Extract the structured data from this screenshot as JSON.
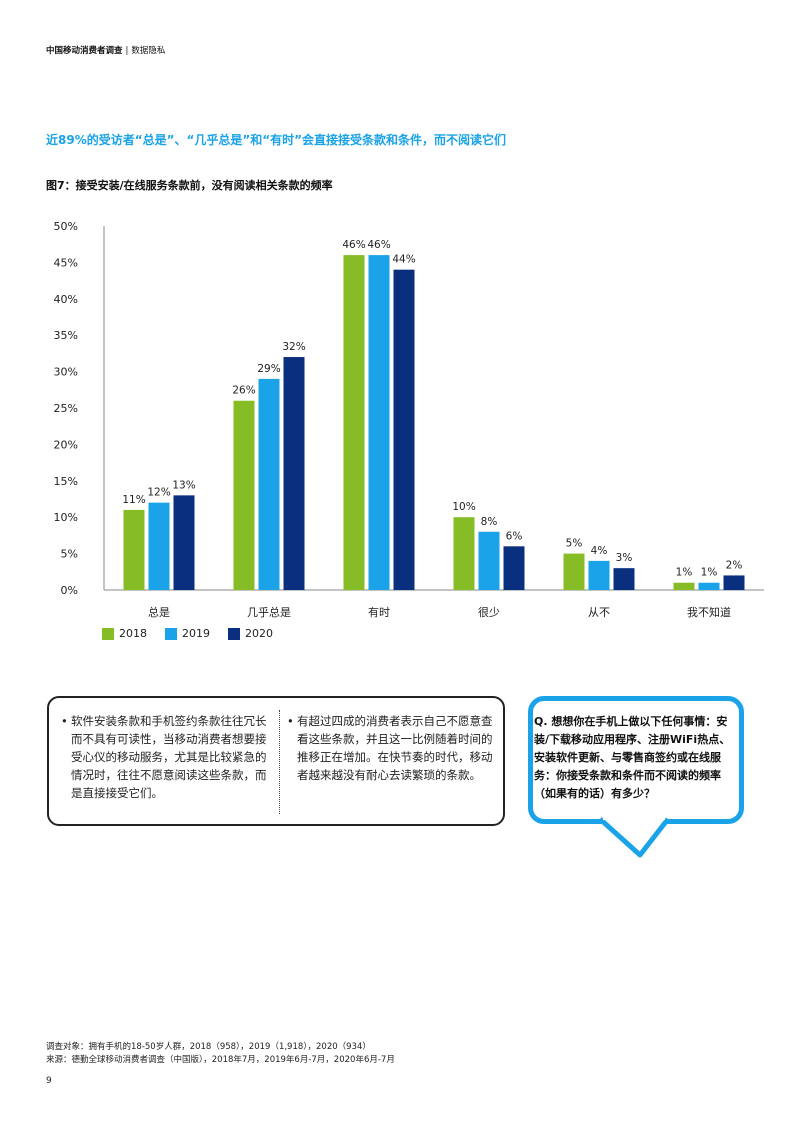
{
  "header": {
    "title": "中国移动消费者调查",
    "section": "数据隐私"
  },
  "headline": "近89%的受访者“总是”、“几乎总是”和“有时”会直接接受条款和条件，而不阅读它们",
  "figure_title": "图7：接受安装/在线服务条款前，没有阅读相关条款的频率",
  "chart_data": {
    "type": "bar",
    "categories": [
      "总是",
      "几乎总是",
      "有时",
      "很少",
      "从不",
      "我不知道"
    ],
    "series": [
      {
        "name": "2018",
        "color": "#86bc25",
        "values": [
          11,
          26,
          46,
          10,
          5,
          1
        ],
        "labels": [
          "11%",
          "26%",
          "46%",
          "10%",
          "5%",
          "1%"
        ]
      },
      {
        "name": "2019",
        "color": "#1aa3e8",
        "values": [
          12,
          29,
          46,
          8,
          4,
          1
        ],
        "labels": [
          "12%",
          "29%",
          "46%",
          "8%",
          "4%",
          "1%"
        ]
      },
      {
        "name": "2020",
        "color": "#0a2f7e",
        "values": [
          13,
          32,
          44,
          6,
          3,
          2
        ],
        "labels": [
          "13%",
          "32%",
          "44%",
          "6%",
          "3%",
          "2%"
        ]
      }
    ],
    "ylim": [
      0,
      50
    ],
    "yticks": [
      0,
      5,
      10,
      15,
      20,
      25,
      30,
      35,
      40,
      45,
      50
    ],
    "ytick_labels": [
      "0%",
      "5%",
      "10%",
      "15%",
      "20%",
      "25%",
      "30%",
      "35%",
      "40%",
      "45%",
      "50%"
    ],
    "legend_position": "bottom-left",
    "grid": false
  },
  "notes": [
    "软件安装条款和手机签约条款往往冗长而不具有可读性，当移动消费者想要接受心仪的移动服务，尤其是比较紧急的情况时，往往不愿意阅读这些条款，而是直接接受它们。",
    "有超过四成的消费者表示自己不愿意查看这些条款，并且这一比例随着时间的推移正在增加。在快节奏的时代，移动者越来越没有耐心去读繁琐的条款。"
  ],
  "bullet": "•",
  "question": "Q. 想想你在手机上做以下任何事情：安装/下载移动应用程序、注册WiFi热点、安装软件更新、与零售商签约或在线服务：你接受条款和条件而不阅读的频率（如果有的话）有多少？",
  "footnote": [
    "调查对象：拥有手机的18-50岁人群，2018（958），2019（1,918），2020（934）",
    "来源：德勤全球移动消费者调查（中国版），2018年7月，2019年6月-7月，2020年6月-7月"
  ],
  "page_number": "9",
  "colors": {
    "accent": "#1aa3e8",
    "green": "#86bc25",
    "navy": "#0a2f7e"
  }
}
